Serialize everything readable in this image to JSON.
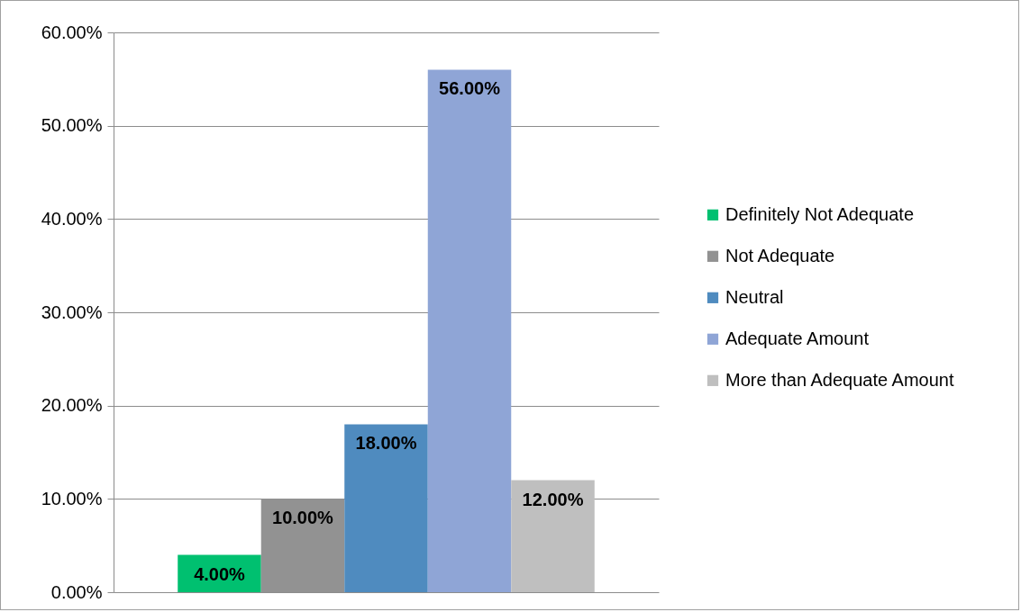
{
  "chart_data": {
    "type": "bar",
    "categories": [
      null
    ],
    "series": [
      {
        "name": "Definitely Not Adequate",
        "color": "#00c070",
        "values": [
          4
        ],
        "value_labels": [
          "4.00%"
        ]
      },
      {
        "name": "Not Adequate",
        "color": "#929292",
        "values": [
          10
        ],
        "value_labels": [
          "10.00%"
        ]
      },
      {
        "name": "Neutral",
        "color": "#4f8bbf",
        "values": [
          18
        ],
        "value_labels": [
          "18.00%"
        ]
      },
      {
        "name": "Adequate Amount",
        "color": "#8fa5d6",
        "values": [
          56
        ],
        "value_labels": [
          "56.00%"
        ]
      },
      {
        "name": "More than Adequate Amount",
        "color": "#bfbfbf",
        "values": [
          12
        ],
        "value_labels": [
          "12.00%"
        ]
      }
    ],
    "ylim": [
      0,
      60
    ],
    "yticks": [
      {
        "value": 0,
        "label": "0.00%"
      },
      {
        "value": 10,
        "label": "10.00%"
      },
      {
        "value": 20,
        "label": "20.00%"
      },
      {
        "value": 30,
        "label": "30.00%"
      },
      {
        "value": 40,
        "label": "40.00%"
      },
      {
        "value": 50,
        "label": "50.00%"
      },
      {
        "value": 60,
        "label": "60.00%"
      }
    ],
    "grid": "y",
    "legend": "right"
  }
}
